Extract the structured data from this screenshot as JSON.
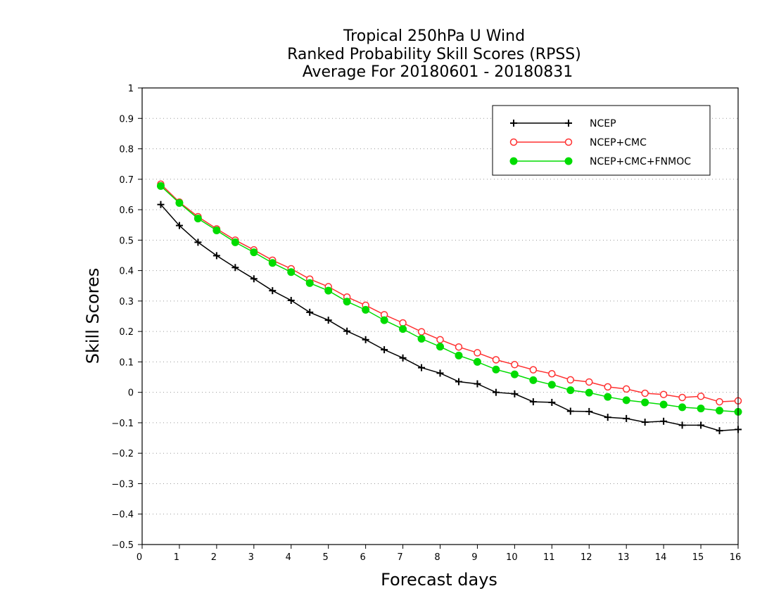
{
  "chart_data": {
    "type": "line",
    "title_lines": [
      "Tropical 250hPa U Wind",
      "Ranked Probability Skill Scores (RPSS)",
      "Average For 20180601 - 20180831"
    ],
    "xlabel": "Forecast days",
    "ylabel": "Skill Scores",
    "xlim": [
      0,
      16
    ],
    "ylim": [
      -0.5,
      1
    ],
    "x_ticks": [
      0,
      1,
      2,
      3,
      4,
      5,
      6,
      7,
      8,
      9,
      10,
      11,
      12,
      13,
      14,
      15,
      16
    ],
    "x_tick_labels": [
      "0",
      "1",
      "2",
      "3",
      "4",
      "5",
      "6",
      "7",
      "8",
      "9",
      "10",
      "11",
      "12",
      "13",
      "14",
      "15",
      "16"
    ],
    "y_ticks": [
      -0.5,
      -0.4,
      -0.3,
      -0.2,
      -0.1,
      0,
      0.1,
      0.2,
      0.3,
      0.4,
      0.5,
      0.6,
      0.7,
      0.8,
      0.9,
      1
    ],
    "y_tick_labels": [
      "−0.5",
      "−0.4",
      "−0.3",
      "−0.2",
      "−0.1",
      "0",
      "0.1",
      "0.2",
      "0.3",
      "0.4",
      "0.5",
      "0.6",
      "0.7",
      "0.8",
      "0.9",
      "1"
    ],
    "grid": "horizontal dotted",
    "legend_position": "top-right",
    "x": [
      0.5,
      1,
      1.5,
      2,
      2.5,
      3,
      3.5,
      4,
      4.5,
      5,
      5.5,
      6,
      6.5,
      7,
      7.5,
      8,
      8.5,
      9,
      9.5,
      10,
      10.5,
      11,
      11.5,
      12,
      12.5,
      13,
      13.5,
      14,
      14.5,
      15,
      15.5,
      16
    ],
    "series": [
      {
        "name": "NCEP",
        "color": "#000000",
        "marker": "plus",
        "values": [
          0.617,
          0.548,
          0.493,
          0.449,
          0.41,
          0.373,
          0.334,
          0.302,
          0.263,
          0.237,
          0.201,
          0.173,
          0.14,
          0.113,
          0.081,
          0.063,
          0.035,
          0.028,
          0.0,
          -0.005,
          -0.031,
          -0.033,
          -0.062,
          -0.063,
          -0.082,
          -0.086,
          -0.098,
          -0.095,
          -0.108,
          -0.108,
          -0.126,
          -0.122
        ]
      },
      {
        "name": "NCEP+CMC",
        "color": "#ff3030",
        "marker": "open-circle",
        "values": [
          0.684,
          0.625,
          0.577,
          0.537,
          0.5,
          0.468,
          0.434,
          0.406,
          0.372,
          0.347,
          0.313,
          0.286,
          0.255,
          0.228,
          0.199,
          0.173,
          0.149,
          0.13,
          0.107,
          0.091,
          0.074,
          0.061,
          0.041,
          0.034,
          0.018,
          0.011,
          -0.003,
          -0.007,
          -0.017,
          -0.013,
          -0.031,
          -0.028
        ]
      },
      {
        "name": "NCEP+CMC+FNMOC",
        "color": "#00dc00",
        "marker": "filled-circle",
        "values": [
          0.678,
          0.622,
          0.571,
          0.532,
          0.493,
          0.46,
          0.425,
          0.395,
          0.359,
          0.334,
          0.298,
          0.271,
          0.237,
          0.208,
          0.176,
          0.15,
          0.121,
          0.1,
          0.075,
          0.059,
          0.04,
          0.025,
          0.007,
          -0.001,
          -0.015,
          -0.026,
          -0.033,
          -0.04,
          -0.049,
          -0.053,
          -0.06,
          -0.064
        ]
      }
    ]
  }
}
